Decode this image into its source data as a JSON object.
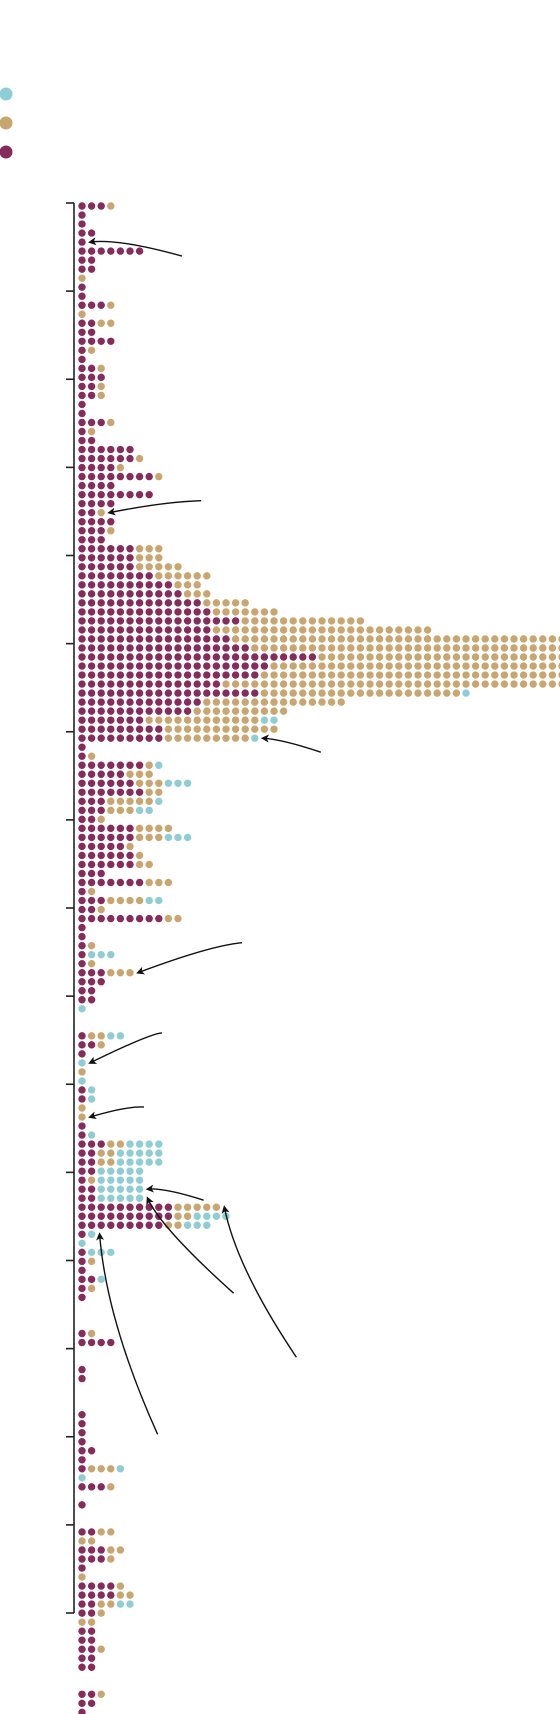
{
  "chart_data": {
    "type": "scatter",
    "title": "",
    "xlabel": "",
    "ylabel": "",
    "grid": false,
    "legend": {
      "placement": "top-left",
      "entries": [
        {
          "name": "",
          "color": "#8ecdd3"
        },
        {
          "name": "",
          "color": "#c9a56f"
        },
        {
          "name": "",
          "color": "#862b5a"
        }
      ]
    },
    "ylim": [
      0,
      16
    ],
    "y_ticks": [
      0,
      1,
      2,
      3,
      4,
      5,
      6,
      7,
      8,
      9,
      10,
      11,
      12,
      13,
      14,
      15,
      16
    ],
    "row_counts": [
      [
        0,
        1,
        3
      ],
      [
        0,
        0,
        1
      ],
      [
        0,
        0,
        1
      ],
      [
        0,
        0,
        2
      ],
      [
        0,
        0,
        1
      ],
      [
        0,
        0,
        7
      ],
      [
        0,
        0,
        2
      ],
      [
        0,
        0,
        2
      ],
      [
        0,
        1,
        0
      ],
      [
        0,
        0,
        1
      ],
      [
        0,
        0,
        1
      ],
      [
        0,
        1,
        3
      ],
      [
        0,
        1,
        0
      ],
      [
        0,
        2,
        2
      ],
      [
        0,
        0,
        2
      ],
      [
        0,
        0,
        4
      ],
      [
        0,
        1,
        1
      ],
      [
        0,
        0,
        1
      ],
      [
        0,
        1,
        2
      ],
      [
        0,
        0,
        3
      ],
      [
        0,
        1,
        2
      ],
      [
        0,
        1,
        2
      ],
      [
        0,
        0,
        1
      ],
      [
        0,
        0,
        1
      ],
      [
        0,
        1,
        3
      ],
      [
        0,
        1,
        1
      ],
      [
        0,
        0,
        2
      ],
      [
        0,
        0,
        6
      ],
      [
        0,
        1,
        6
      ],
      [
        0,
        1,
        4
      ],
      [
        0,
        1,
        8
      ],
      [
        0,
        0,
        4
      ],
      [
        0,
        0,
        8
      ],
      [
        0,
        0,
        4
      ],
      [
        0,
        1,
        2
      ],
      [
        0,
        0,
        4
      ],
      [
        0,
        1,
        3
      ],
      [
        0,
        0,
        3
      ],
      [
        0,
        3,
        6
      ],
      [
        0,
        3,
        6
      ],
      [
        0,
        5,
        6
      ],
      [
        0,
        6,
        8
      ],
      [
        0,
        3,
        10
      ],
      [
        0,
        3,
        11
      ],
      [
        0,
        5,
        13
      ],
      [
        0,
        7,
        14
      ],
      [
        0,
        13,
        17
      ],
      [
        0,
        23,
        14
      ],
      [
        0,
        39,
        16
      ],
      [
        0,
        40,
        18
      ],
      [
        0,
        47,
        25
      ],
      [
        1,
        31,
        20
      ],
      [
        0,
        39,
        19
      ],
      [
        0,
        36,
        15
      ],
      [
        1,
        21,
        19
      ],
      [
        0,
        15,
        13
      ],
      [
        0,
        10,
        12
      ],
      [
        2,
        12,
        7
      ],
      [
        0,
        12,
        9
      ],
      [
        1,
        9,
        9
      ],
      [
        0,
        0,
        1
      ],
      [
        0,
        1,
        1
      ],
      [
        1,
        1,
        7
      ],
      [
        0,
        3,
        5
      ],
      [
        3,
        3,
        6
      ],
      [
        0,
        2,
        7
      ],
      [
        1,
        5,
        3
      ],
      [
        2,
        3,
        3
      ],
      [
        0,
        1,
        2
      ],
      [
        0,
        4,
        6
      ],
      [
        3,
        3,
        6
      ],
      [
        0,
        1,
        5
      ],
      [
        0,
        1,
        6
      ],
      [
        0,
        2,
        6
      ],
      [
        0,
        0,
        3
      ],
      [
        0,
        3,
        7
      ],
      [
        0,
        1,
        1
      ],
      [
        2,
        4,
        3
      ],
      [
        0,
        1,
        2
      ],
      [
        0,
        2,
        9
      ],
      [
        0,
        0,
        1
      ],
      [
        0,
        0,
        1
      ],
      [
        0,
        1,
        1
      ],
      [
        3,
        0,
        1
      ],
      [
        0,
        1,
        1
      ],
      [
        0,
        3,
        3
      ],
      [
        0,
        0,
        3
      ],
      [
        0,
        0,
        2
      ],
      [
        0,
        0,
        2
      ],
      [
        1,
        0,
        0
      ],
      [
        0,
        0,
        0
      ],
      [
        0,
        0,
        0
      ],
      [
        2,
        2,
        1
      ],
      [
        0,
        1,
        2
      ],
      [
        0,
        0,
        1
      ],
      [
        1,
        0,
        0
      ],
      [
        0,
        1,
        0
      ],
      [
        1,
        0,
        0
      ],
      [
        1,
        0,
        1
      ],
      [
        1,
        0,
        1
      ],
      [
        0,
        1,
        0
      ],
      [
        0,
        1,
        0
      ],
      [
        0,
        0,
        1
      ],
      [
        1,
        0,
        1
      ],
      [
        4,
        2,
        3
      ],
      [
        5,
        2,
        2
      ],
      [
        5,
        2,
        2
      ],
      [
        5,
        0,
        2
      ],
      [
        5,
        1,
        1
      ],
      [
        5,
        0,
        2
      ],
      [
        5,
        0,
        2
      ],
      [
        0,
        5,
        10
      ],
      [
        4,
        2,
        10
      ],
      [
        3,
        2,
        9
      ],
      [
        1,
        0,
        1
      ],
      [
        1,
        0,
        0
      ],
      [
        3,
        0,
        1
      ],
      [
        0,
        1,
        1
      ],
      [
        0,
        0,
        1
      ],
      [
        1,
        0,
        2
      ],
      [
        0,
        1,
        1
      ],
      [
        0,
        0,
        1
      ],
      [
        0,
        0,
        0
      ],
      [
        0,
        0,
        0
      ],
      [
        0,
        0,
        0
      ],
      [
        0,
        1,
        1
      ],
      [
        0,
        0,
        4
      ],
      [
        0,
        0,
        0
      ],
      [
        0,
        0,
        0
      ],
      [
        0,
        0,
        1
      ],
      [
        0,
        0,
        1
      ],
      [
        0,
        0,
        0
      ],
      [
        0,
        0,
        0
      ],
      [
        0,
        0,
        0
      ],
      [
        0,
        0,
        1
      ],
      [
        0,
        0,
        1
      ],
      [
        0,
        0,
        1
      ],
      [
        0,
        0,
        1
      ],
      [
        0,
        0,
        2
      ],
      [
        0,
        0,
        1
      ],
      [
        1,
        3,
        1
      ],
      [
        1,
        0,
        0
      ],
      [
        0,
        1,
        3
      ],
      [
        0,
        0,
        0
      ],
      [
        0,
        0,
        1
      ],
      [
        0,
        0,
        0
      ],
      [
        0,
        0,
        0
      ],
      [
        0,
        2,
        2
      ],
      [
        0,
        2,
        0
      ],
      [
        0,
        2,
        3
      ],
      [
        0,
        1,
        3
      ],
      [
        0,
        0,
        1
      ],
      [
        0,
        1,
        0
      ],
      [
        0,
        1,
        4
      ],
      [
        0,
        2,
        4
      ],
      [
        2,
        2,
        2
      ],
      [
        0,
        1,
        2
      ],
      [
        0,
        2,
        0
      ],
      [
        0,
        0,
        2
      ],
      [
        0,
        0,
        2
      ],
      [
        0,
        1,
        2
      ],
      [
        0,
        0,
        2
      ],
      [
        0,
        0,
        2
      ],
      [
        0,
        0,
        0
      ],
      [
        0,
        0,
        0
      ],
      [
        0,
        1,
        2
      ],
      [
        0,
        0,
        2
      ],
      [
        0,
        0,
        1
      ],
      [
        0,
        1,
        0
      ],
      [
        0,
        0,
        0
      ],
      [
        0,
        0,
        1
      ]
    ],
    "annotations": [
      {
        "label": "",
        "row": 4
      },
      {
        "label": "",
        "row": 34
      },
      {
        "label": "",
        "row": 48
      },
      {
        "label": "",
        "row": 53
      },
      {
        "label": "",
        "row": 59
      },
      {
        "label": "",
        "row": 85
      },
      {
        "label": "",
        "row": 95
      },
      {
        "label": "",
        "row": 101
      },
      {
        "label": "",
        "row": 109
      },
      {
        "label": "",
        "row": 110
      },
      {
        "label": "",
        "row": 111
      },
      {
        "label": "",
        "row": 114
      }
    ]
  }
}
